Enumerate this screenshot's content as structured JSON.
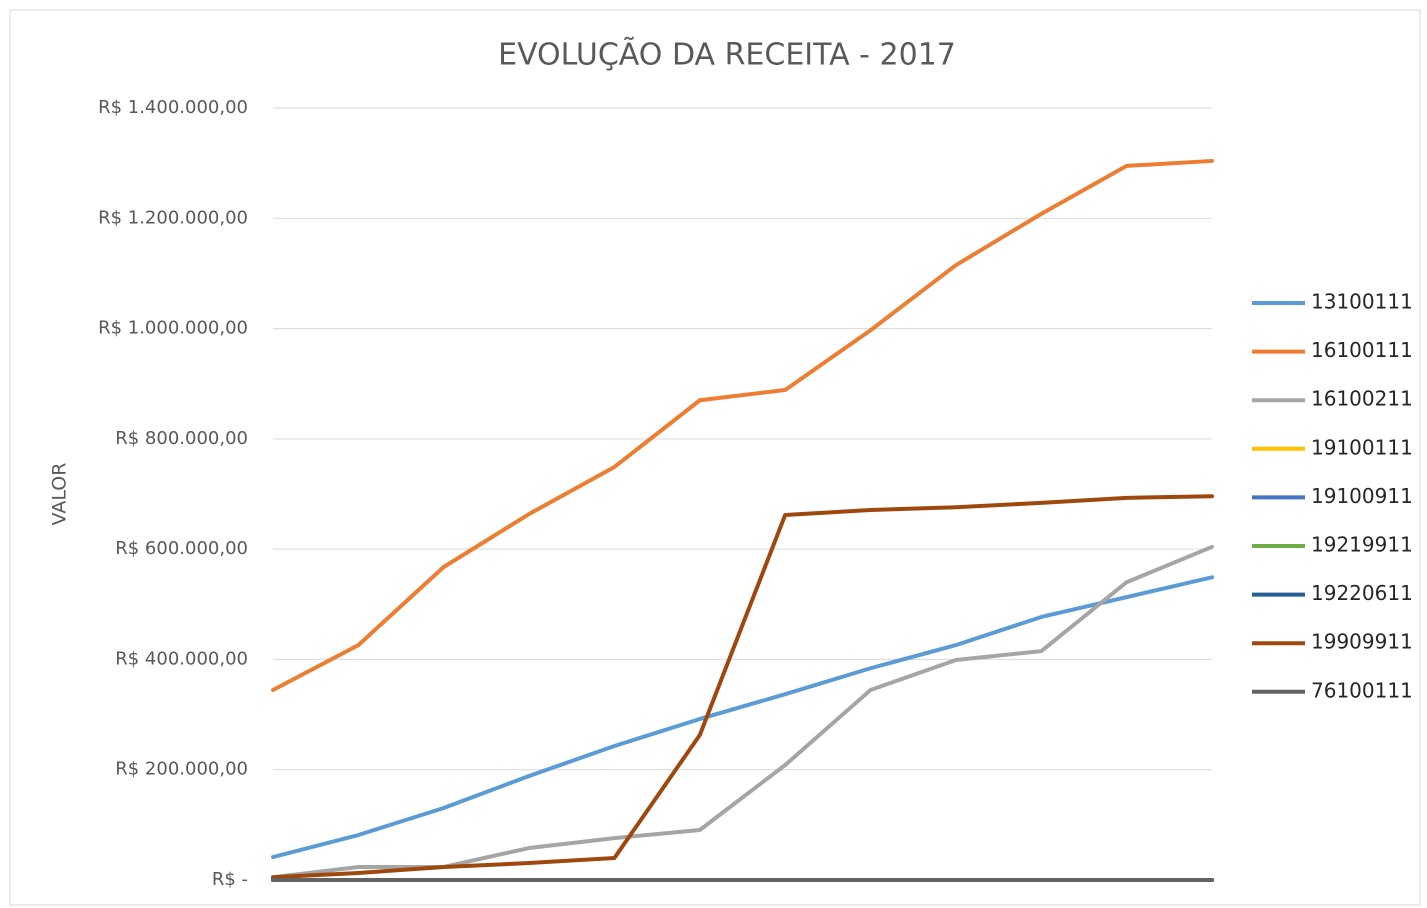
{
  "chart_data": {
    "type": "line",
    "title": "EVOLUÇÃO DA RECEITA - 2017",
    "y_label": "VALOR",
    "categories": [
      null,
      null,
      null,
      null,
      null,
      null,
      null,
      null,
      null,
      null,
      null,
      null
    ],
    "ylim": [
      0,
      1400000
    ],
    "yticks": [
      {
        "value": 0,
        "label": "R$ -"
      },
      {
        "value": 200000,
        "label": "R$ 200.000,00"
      },
      {
        "value": 400000,
        "label": "R$ 400.000,00"
      },
      {
        "value": 600000,
        "label": "R$ 600.000,00"
      },
      {
        "value": 800000,
        "label": "R$ 800.000,00"
      },
      {
        "value": 1000000,
        "label": "R$ 1.000.000,00"
      },
      {
        "value": 1200000,
        "label": "R$ 1.200.000,00"
      },
      {
        "value": 1400000,
        "label": "R$ 1.400.000,00"
      }
    ],
    "grid": true,
    "legend": "right",
    "series": [
      {
        "name": "13100111",
        "color": "#5b9bd5",
        "values": [
          41700,
          81600,
          130600,
          188600,
          243000,
          292000,
          337000,
          384000,
          426000,
          477000,
          513000,
          549000
        ]
      },
      {
        "name": "16100111",
        "color": "#ed7d31",
        "values": [
          344600,
          426000,
          567600,
          663700,
          749000,
          870000,
          888600,
          997000,
          1115000,
          1208000,
          1295000,
          1304000
        ]
      },
      {
        "name": "16100211",
        "color": "#a5a5a5",
        "values": [
          5000,
          23600,
          23600,
          58000,
          76000,
          90700,
          208500,
          344600,
          399000,
          415000,
          540000,
          604000
        ]
      },
      {
        "name": "19100111",
        "color": "#ffc000",
        "values": [
          0,
          0,
          0,
          0,
          0,
          0,
          0,
          0,
          0,
          0,
          0,
          0
        ]
      },
      {
        "name": "19100911",
        "color": "#4472c4",
        "values": [
          0,
          0,
          0,
          0,
          0,
          0,
          0,
          0,
          0,
          0,
          0,
          0
        ]
      },
      {
        "name": "19219911",
        "color": "#70ad47",
        "values": [
          0,
          0,
          0,
          0,
          0,
          0,
          0,
          0,
          0,
          0,
          0,
          0
        ]
      },
      {
        "name": "19220611",
        "color": "#255e91",
        "values": [
          0,
          0,
          0,
          0,
          0,
          0,
          0,
          0,
          0,
          0,
          0,
          0
        ]
      },
      {
        "name": "19909911",
        "color": "#9e480e",
        "values": [
          5000,
          12700,
          23600,
          30800,
          40000,
          263000,
          662000,
          671000,
          676000,
          684000,
          693000,
          696000
        ]
      },
      {
        "name": "76100111",
        "color": "#636363",
        "values": [
          0,
          0,
          0,
          0,
          0,
          0,
          0,
          0,
          0,
          0,
          0,
          0
        ]
      }
    ]
  }
}
